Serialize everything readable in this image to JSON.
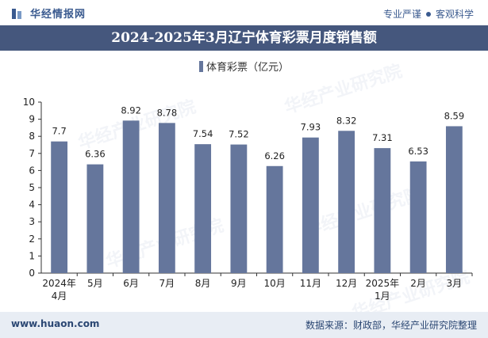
{
  "header": {
    "brand_name": "华经情报网",
    "slogan_left": "专业严谨",
    "slogan_right": "客观科学"
  },
  "chart_data": {
    "type": "bar",
    "title": "2024-2025年3月辽宁体育彩票月度销售额",
    "legend": [
      "体育彩票（亿元）"
    ],
    "categories": [
      [
        "2024年",
        "4月"
      ],
      [
        "5月"
      ],
      [
        "6月"
      ],
      [
        "7月"
      ],
      [
        "8月"
      ],
      [
        "9月"
      ],
      [
        "10月"
      ],
      [
        "11月"
      ],
      [
        "12月"
      ],
      [
        "2025年",
        "1月"
      ],
      [
        "2月"
      ],
      [
        "3月"
      ]
    ],
    "series": [
      {
        "name": "体育彩票（亿元）",
        "color": "#65769c",
        "values": [
          7.7,
          6.36,
          8.92,
          8.78,
          7.54,
          7.52,
          6.26,
          7.93,
          8.32,
          7.31,
          6.53,
          8.59
        ]
      }
    ],
    "yticks": [
      0,
      1,
      2,
      3,
      4,
      5,
      6,
      7,
      8,
      9,
      10
    ],
    "ylim": [
      0,
      10
    ],
    "grid": false
  },
  "footer": {
    "url": "www.huaon.com",
    "source": "数据来源：财政部，华经产业研究院整理"
  },
  "watermark": "华经产业研究院"
}
